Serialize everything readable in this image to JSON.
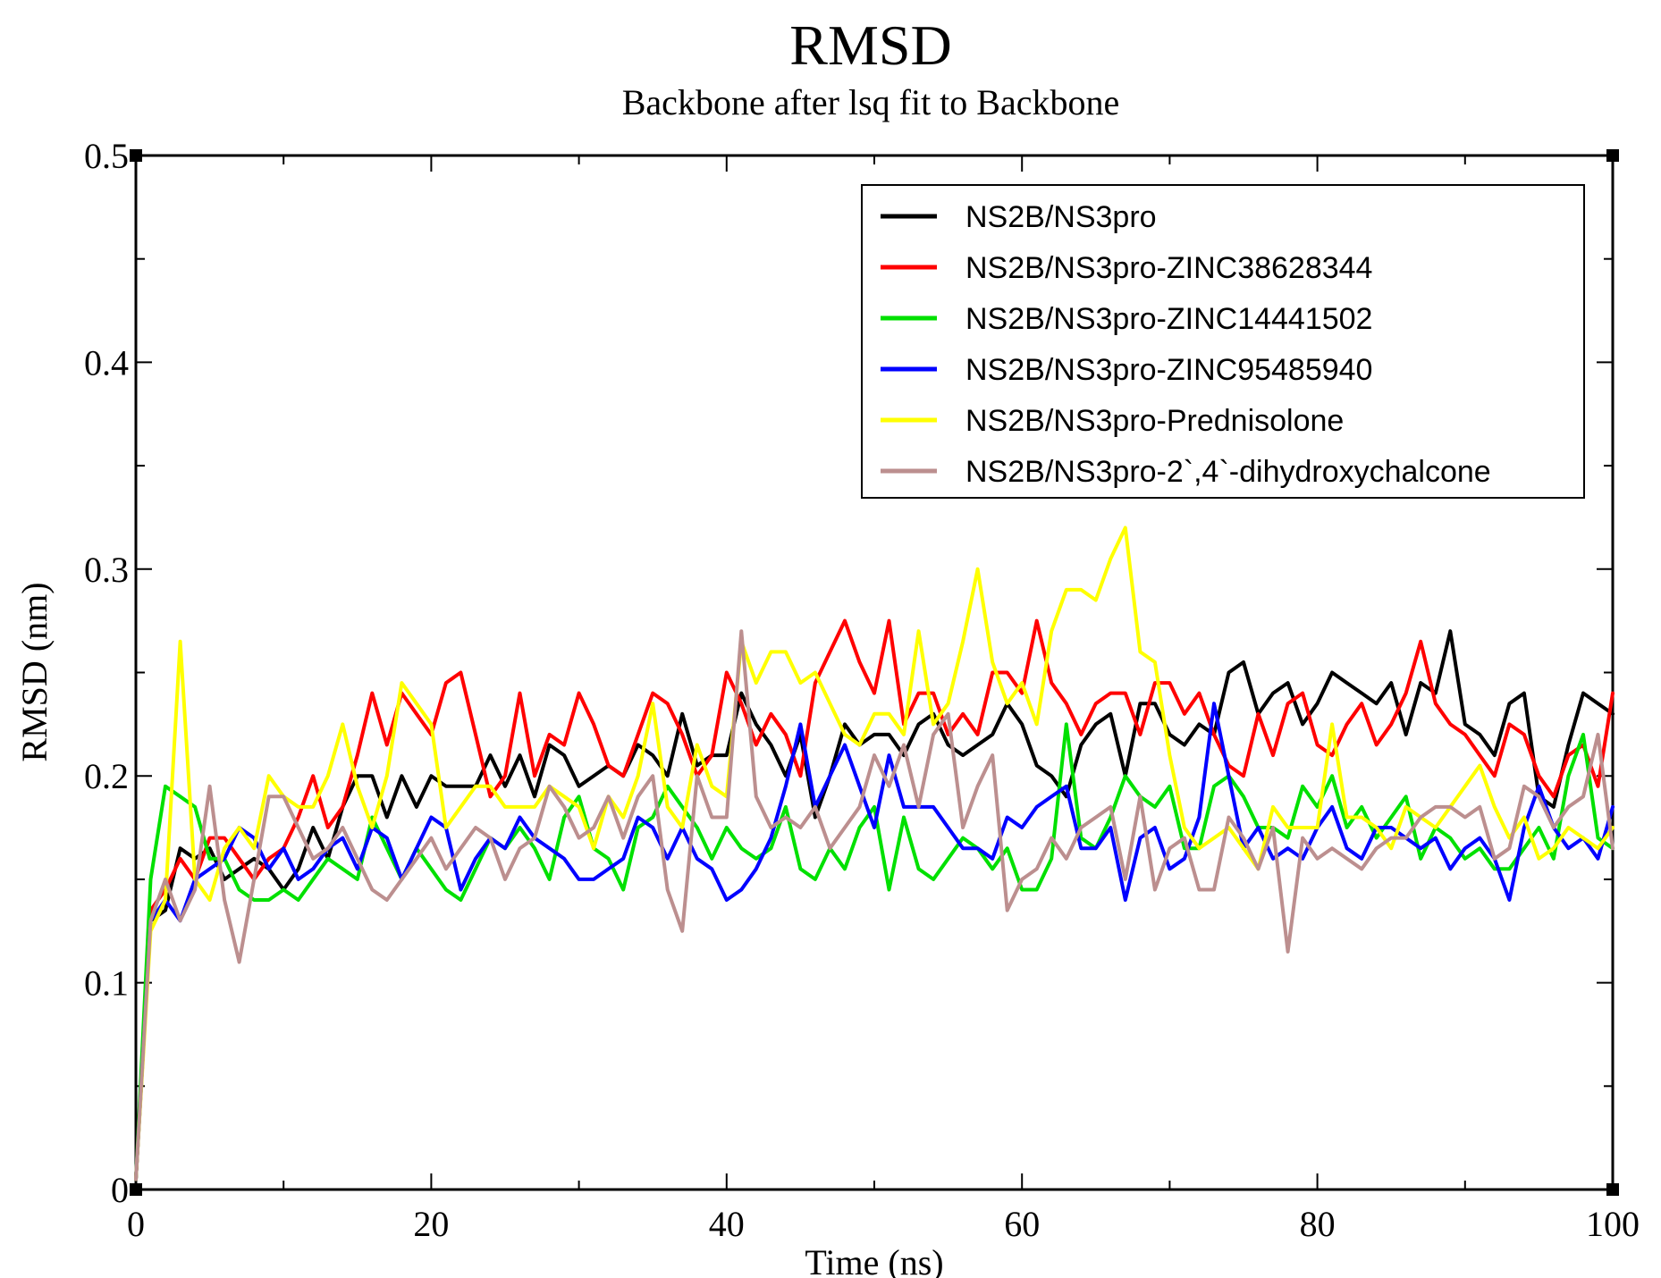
{
  "chart_data": {
    "type": "line",
    "title": "RMSD",
    "subtitle": "Backbone after lsq fit to Backbone",
    "xlabel": "Time (ns)",
    "ylabel": "RMSD (nm)",
    "xlim": [
      0,
      100
    ],
    "ylim": [
      0,
      0.5
    ],
    "x_ticks": [
      0,
      20,
      40,
      60,
      80,
      100
    ],
    "x_tick_labels": [
      "0",
      "20",
      "40",
      "60",
      "80",
      "100"
    ],
    "y_ticks": [
      0,
      0.1,
      0.2,
      0.3,
      0.4,
      0.5
    ],
    "y_tick_labels": [
      "0",
      "0.1",
      "0.2",
      "0.3",
      "0.4",
      "0.5"
    ],
    "legend_position": "top-right",
    "x": [
      0,
      1,
      2,
      3,
      4,
      5,
      6,
      7,
      8,
      9,
      10,
      11,
      12,
      13,
      14,
      15,
      16,
      17,
      18,
      19,
      20,
      21,
      22,
      23,
      24,
      25,
      26,
      27,
      28,
      29,
      30,
      31,
      32,
      33,
      34,
      35,
      36,
      37,
      38,
      39,
      40,
      41,
      42,
      43,
      44,
      45,
      46,
      47,
      48,
      49,
      50,
      51,
      52,
      53,
      54,
      55,
      56,
      57,
      58,
      59,
      60,
      61,
      62,
      63,
      64,
      65,
      66,
      67,
      68,
      69,
      70,
      71,
      72,
      73,
      74,
      75,
      76,
      77,
      78,
      79,
      80,
      81,
      82,
      83,
      84,
      85,
      86,
      87,
      88,
      89,
      90,
      91,
      92,
      93,
      94,
      95,
      96,
      97,
      98,
      99,
      100
    ],
    "series": [
      {
        "name": "NS2B/NS3pro",
        "color": "#000000",
        "values": [
          0.005,
          0.13,
          0.135,
          0.165,
          0.16,
          0.165,
          0.15,
          0.155,
          0.16,
          0.155,
          0.145,
          0.155,
          0.175,
          0.16,
          0.185,
          0.2,
          0.2,
          0.18,
          0.2,
          0.185,
          0.2,
          0.195,
          0.195,
          0.195,
          0.21,
          0.195,
          0.21,
          0.19,
          0.215,
          0.21,
          0.195,
          0.2,
          0.205,
          0.2,
          0.215,
          0.21,
          0.2,
          0.23,
          0.205,
          0.21,
          0.21,
          0.24,
          0.225,
          0.215,
          0.2,
          0.22,
          0.18,
          0.2,
          0.225,
          0.215,
          0.22,
          0.22,
          0.21,
          0.225,
          0.23,
          0.215,
          0.21,
          0.215,
          0.22,
          0.235,
          0.225,
          0.205,
          0.2,
          0.19,
          0.215,
          0.225,
          0.23,
          0.2,
          0.235,
          0.235,
          0.22,
          0.215,
          0.225,
          0.22,
          0.25,
          0.255,
          0.23,
          0.24,
          0.245,
          0.225,
          0.235,
          0.25,
          0.245,
          0.24,
          0.235,
          0.245,
          0.22,
          0.245,
          0.24,
          0.27,
          0.225,
          0.22,
          0.21,
          0.235,
          0.24,
          0.19,
          0.185,
          0.215,
          0.24,
          0.235,
          0.23
        ]
      },
      {
        "name": "NS2B/NS3pro-ZINC38628344",
        "color": "#ff0000",
        "values": [
          0.005,
          0.135,
          0.145,
          0.16,
          0.15,
          0.17,
          0.17,
          0.16,
          0.15,
          0.16,
          0.165,
          0.18,
          0.2,
          0.175,
          0.185,
          0.21,
          0.24,
          0.215,
          0.24,
          0.23,
          0.22,
          0.245,
          0.25,
          0.22,
          0.19,
          0.2,
          0.24,
          0.2,
          0.22,
          0.215,
          0.24,
          0.225,
          0.205,
          0.2,
          0.22,
          0.24,
          0.235,
          0.22,
          0.2,
          0.21,
          0.25,
          0.235,
          0.215,
          0.23,
          0.22,
          0.2,
          0.245,
          0.26,
          0.275,
          0.255,
          0.24,
          0.275,
          0.225,
          0.24,
          0.24,
          0.22,
          0.23,
          0.22,
          0.25,
          0.25,
          0.24,
          0.275,
          0.245,
          0.235,
          0.22,
          0.235,
          0.24,
          0.24,
          0.22,
          0.245,
          0.245,
          0.23,
          0.24,
          0.22,
          0.205,
          0.2,
          0.23,
          0.21,
          0.235,
          0.24,
          0.215,
          0.21,
          0.225,
          0.235,
          0.215,
          0.225,
          0.24,
          0.265,
          0.235,
          0.225,
          0.22,
          0.21,
          0.2,
          0.225,
          0.22,
          0.2,
          0.19,
          0.21,
          0.215,
          0.195,
          0.24
        ]
      },
      {
        "name": "NS2B/NS3pro-ZINC14441502",
        "color": "#00e000",
        "values": [
          0.005,
          0.15,
          0.195,
          0.19,
          0.185,
          0.16,
          0.16,
          0.145,
          0.14,
          0.14,
          0.145,
          0.14,
          0.15,
          0.16,
          0.155,
          0.15,
          0.18,
          0.165,
          0.15,
          0.165,
          0.155,
          0.145,
          0.14,
          0.155,
          0.17,
          0.165,
          0.175,
          0.165,
          0.15,
          0.18,
          0.19,
          0.165,
          0.16,
          0.145,
          0.175,
          0.18,
          0.195,
          0.185,
          0.175,
          0.16,
          0.175,
          0.165,
          0.16,
          0.165,
          0.185,
          0.155,
          0.15,
          0.165,
          0.155,
          0.175,
          0.185,
          0.145,
          0.18,
          0.155,
          0.15,
          0.16,
          0.17,
          0.165,
          0.155,
          0.165,
          0.145,
          0.145,
          0.16,
          0.225,
          0.17,
          0.165,
          0.18,
          0.2,
          0.19,
          0.185,
          0.195,
          0.165,
          0.165,
          0.195,
          0.2,
          0.19,
          0.175,
          0.175,
          0.17,
          0.195,
          0.185,
          0.2,
          0.175,
          0.185,
          0.17,
          0.18,
          0.19,
          0.16,
          0.175,
          0.17,
          0.16,
          0.165,
          0.155,
          0.155,
          0.165,
          0.175,
          0.16,
          0.2,
          0.22,
          0.17,
          0.165
        ]
      },
      {
        "name": "NS2B/NS3pro-ZINC95485940",
        "color": "#0000ff",
        "values": [
          0.005,
          0.13,
          0.14,
          0.13,
          0.15,
          0.155,
          0.16,
          0.175,
          0.17,
          0.155,
          0.165,
          0.15,
          0.155,
          0.165,
          0.17,
          0.155,
          0.175,
          0.17,
          0.15,
          0.165,
          0.18,
          0.175,
          0.145,
          0.16,
          0.17,
          0.165,
          0.18,
          0.17,
          0.165,
          0.16,
          0.15,
          0.15,
          0.155,
          0.16,
          0.18,
          0.175,
          0.16,
          0.175,
          0.16,
          0.155,
          0.14,
          0.145,
          0.155,
          0.17,
          0.195,
          0.225,
          0.185,
          0.2,
          0.215,
          0.195,
          0.175,
          0.21,
          0.185,
          0.185,
          0.185,
          0.175,
          0.165,
          0.165,
          0.16,
          0.18,
          0.175,
          0.185,
          0.19,
          0.195,
          0.165,
          0.165,
          0.175,
          0.14,
          0.17,
          0.175,
          0.155,
          0.16,
          0.18,
          0.235,
          0.2,
          0.165,
          0.175,
          0.16,
          0.165,
          0.16,
          0.175,
          0.185,
          0.165,
          0.16,
          0.175,
          0.175,
          0.17,
          0.165,
          0.17,
          0.155,
          0.165,
          0.17,
          0.16,
          0.14,
          0.175,
          0.195,
          0.175,
          0.165,
          0.17,
          0.16,
          0.185
        ]
      },
      {
        "name": "NS2B/NS3pro-Prednisolone",
        "color": "#ffff00",
        "values": [
          0.005,
          0.125,
          0.14,
          0.265,
          0.15,
          0.14,
          0.165,
          0.175,
          0.165,
          0.2,
          0.19,
          0.185,
          0.185,
          0.2,
          0.225,
          0.195,
          0.175,
          0.2,
          0.245,
          0.235,
          0.225,
          0.175,
          0.185,
          0.195,
          0.195,
          0.185,
          0.185,
          0.185,
          0.195,
          0.19,
          0.185,
          0.165,
          0.19,
          0.18,
          0.2,
          0.235,
          0.185,
          0.175,
          0.215,
          0.195,
          0.19,
          0.265,
          0.245,
          0.26,
          0.26,
          0.245,
          0.25,
          0.235,
          0.22,
          0.215,
          0.23,
          0.23,
          0.22,
          0.27,
          0.225,
          0.235,
          0.265,
          0.3,
          0.255,
          0.235,
          0.245,
          0.225,
          0.27,
          0.29,
          0.29,
          0.285,
          0.305,
          0.32,
          0.26,
          0.255,
          0.21,
          0.175,
          0.165,
          0.17,
          0.175,
          0.165,
          0.155,
          0.185,
          0.175,
          0.175,
          0.175,
          0.225,
          0.18,
          0.18,
          0.175,
          0.165,
          0.185,
          0.18,
          0.175,
          0.185,
          0.195,
          0.205,
          0.185,
          0.17,
          0.18,
          0.16,
          0.165,
          0.175,
          0.17,
          0.165,
          0.175
        ]
      },
      {
        "name": "NS2B/NS3pro-2`,4`-dihydroxychalcone",
        "color": "#bc8f8f",
        "values": [
          0.005,
          0.13,
          0.15,
          0.13,
          0.145,
          0.195,
          0.14,
          0.11,
          0.15,
          0.19,
          0.19,
          0.175,
          0.16,
          0.165,
          0.175,
          0.16,
          0.145,
          0.14,
          0.15,
          0.16,
          0.17,
          0.155,
          0.165,
          0.175,
          0.17,
          0.15,
          0.165,
          0.17,
          0.195,
          0.185,
          0.17,
          0.175,
          0.19,
          0.17,
          0.19,
          0.2,
          0.145,
          0.125,
          0.2,
          0.18,
          0.18,
          0.27,
          0.19,
          0.175,
          0.18,
          0.175,
          0.185,
          0.165,
          0.175,
          0.185,
          0.21,
          0.195,
          0.215,
          0.185,
          0.22,
          0.23,
          0.175,
          0.195,
          0.21,
          0.135,
          0.15,
          0.155,
          0.17,
          0.16,
          0.175,
          0.18,
          0.185,
          0.15,
          0.19,
          0.145,
          0.165,
          0.17,
          0.145,
          0.145,
          0.18,
          0.17,
          0.155,
          0.175,
          0.115,
          0.17,
          0.16,
          0.165,
          0.16,
          0.155,
          0.165,
          0.17,
          0.17,
          0.18,
          0.185,
          0.185,
          0.18,
          0.185,
          0.16,
          0.165,
          0.195,
          0.19,
          0.175,
          0.185,
          0.19,
          0.22,
          0.165
        ]
      }
    ]
  }
}
